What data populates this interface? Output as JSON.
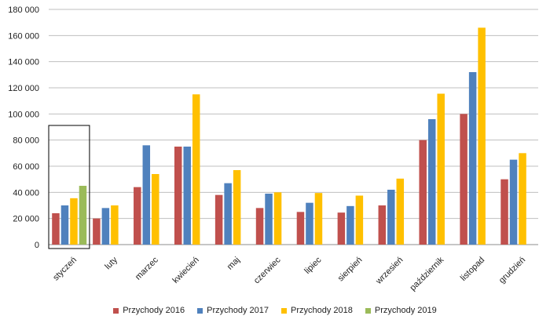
{
  "chart_data": {
    "type": "bar",
    "title": "",
    "xlabel": "",
    "ylabel": "",
    "ylim": [
      0,
      180000
    ],
    "ytick_step": 20000,
    "ytick_labels": [
      "0",
      "20 000",
      "40 000",
      "60 000",
      "80 000",
      "100 000",
      "120 000",
      "140 000",
      "160 000",
      "180 000"
    ],
    "grid": true,
    "legend_position": "bottom",
    "categories": [
      "styczeń",
      "luty",
      "marzec",
      "kwiecień",
      "maj",
      "czerwiec",
      "lipiec",
      "sierpień",
      "wrzesień",
      "październik",
      "listopad",
      "grudzień"
    ],
    "series": [
      {
        "name": "Przychody 2016",
        "color": "#c0504d",
        "values": [
          24000,
          20000,
          44000,
          75000,
          38000,
          28000,
          25000,
          24500,
          30000,
          80000,
          100000,
          50000
        ]
      },
      {
        "name": "Przychody 2017",
        "color": "#4f81bd",
        "values": [
          30000,
          28000,
          76000,
          75000,
          47000,
          39000,
          32000,
          29500,
          42000,
          96000,
          132000,
          65000
        ]
      },
      {
        "name": "Przychody 2018",
        "color": "#ffc000",
        "values": [
          35500,
          30000,
          54000,
          115000,
          57000,
          40000,
          39500,
          37500,
          50500,
          115500,
          166000,
          70000
        ]
      },
      {
        "name": "Przychody 2019",
        "color": "#9bbb59",
        "values": [
          45000,
          null,
          null,
          null,
          null,
          null,
          null,
          null,
          null,
          null,
          null,
          null
        ]
      }
    ],
    "highlight_category": "styczeń"
  }
}
